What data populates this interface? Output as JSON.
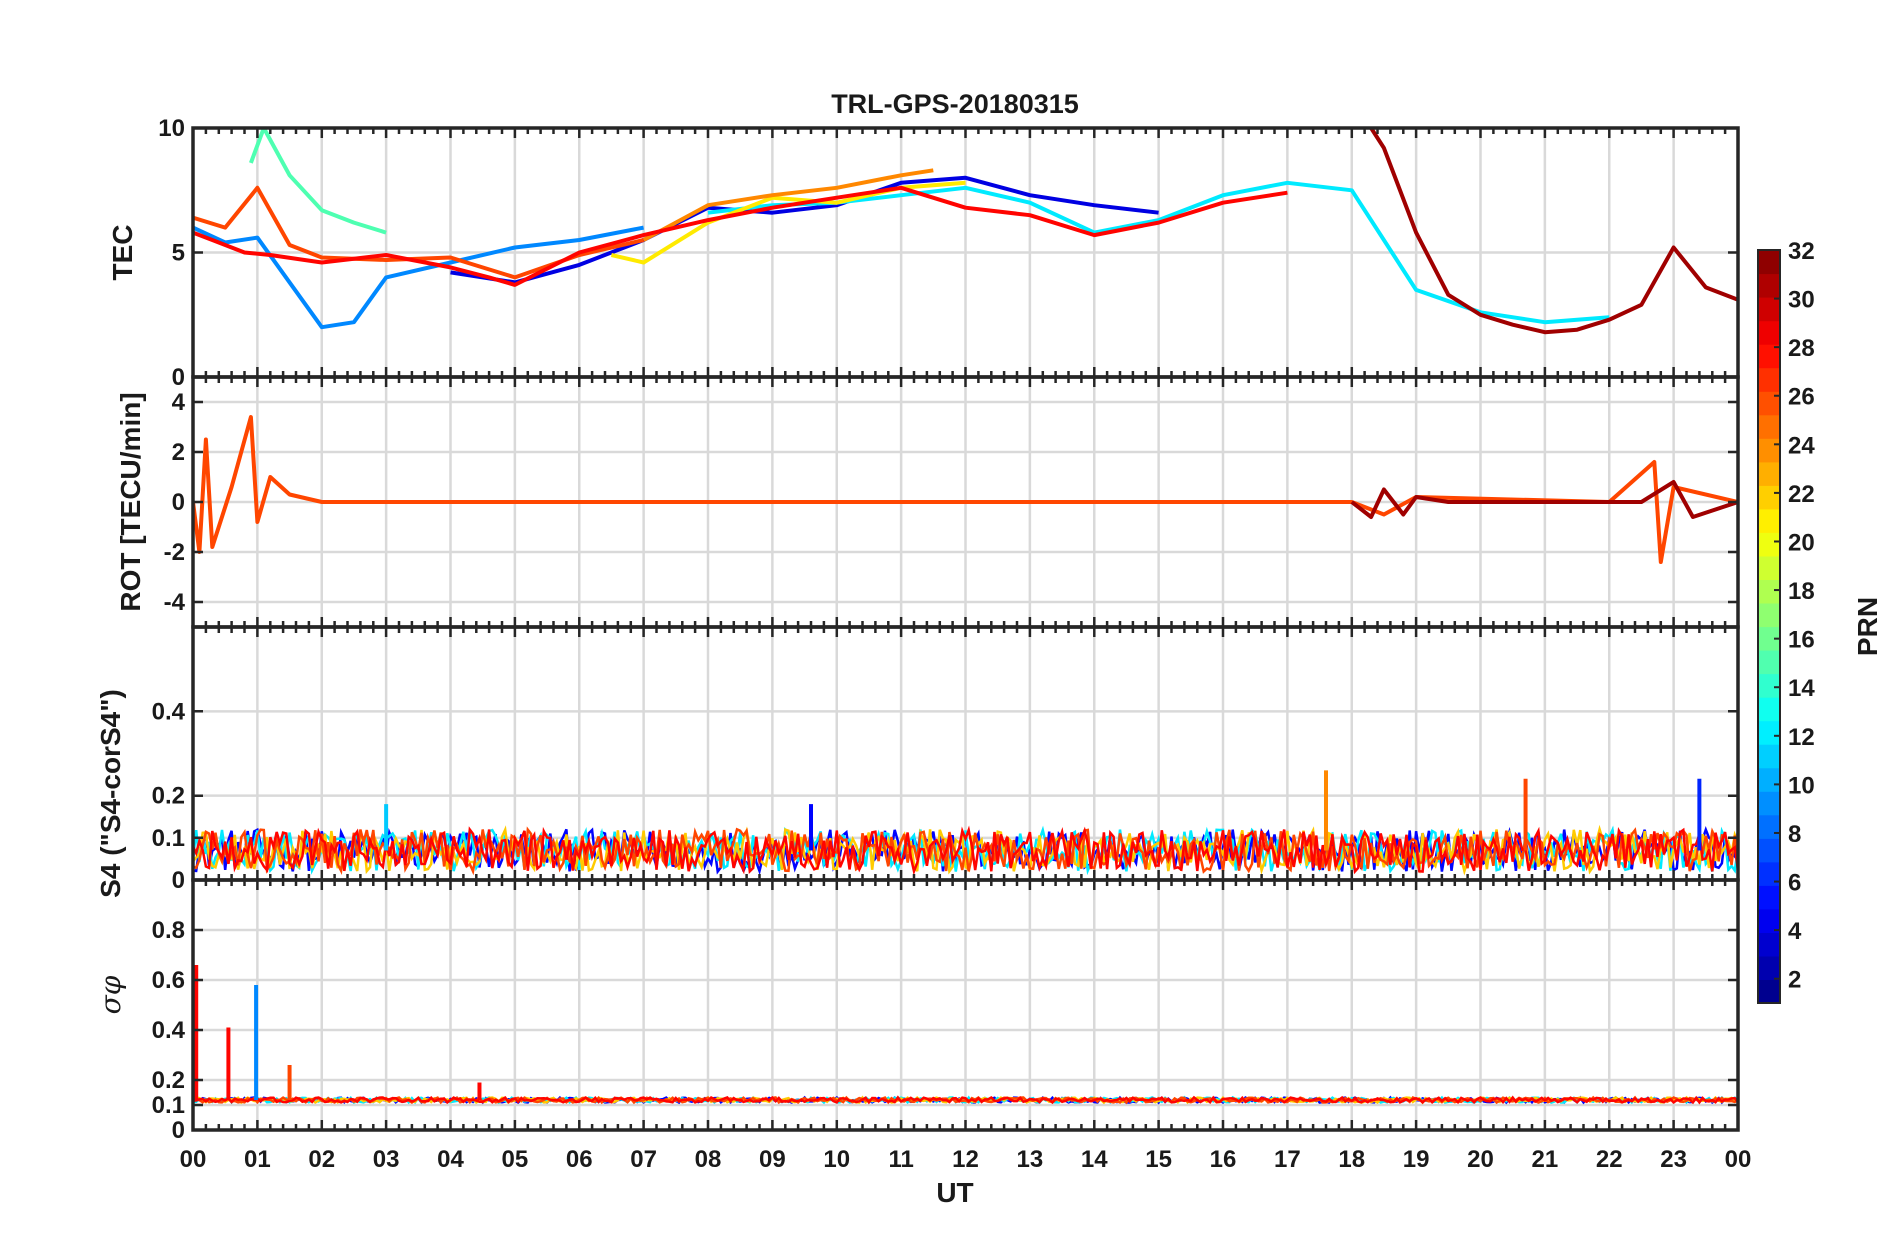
{
  "chart_data": {
    "type": "line",
    "title": "TRL-GPS-20180315",
    "xlabel": "UT",
    "x_tick_labels": [
      "00",
      "01",
      "02",
      "03",
      "04",
      "05",
      "06",
      "07",
      "08",
      "09",
      "10",
      "11",
      "12",
      "13",
      "14",
      "15",
      "16",
      "17",
      "18",
      "19",
      "20",
      "21",
      "22",
      "23",
      "00"
    ],
    "xlim": [
      0,
      24
    ],
    "grid": true,
    "panels": [
      {
        "name": "tec",
        "ylabel": "TEC",
        "ylim": [
          0,
          10
        ],
        "y_ticks": [
          0,
          5,
          10
        ],
        "y_tick_labels": [
          "0",
          "5",
          "10"
        ],
        "series": [
          {
            "prn": 4,
            "x": [
              4.0,
              5.0,
              6.0,
              7.0,
              8.0,
              9.0,
              10.0,
              11.0,
              12.0,
              13.0,
              14.0,
              15.0
            ],
            "y": [
              4.2,
              3.8,
              4.5,
              5.5,
              6.8,
              6.6,
              6.9,
              7.8,
              8.0,
              7.3,
              6.9,
              6.6
            ]
          },
          {
            "prn": 9,
            "x": [
              0.0,
              0.5,
              1.0,
              1.5,
              2.0,
              2.5,
              3.0,
              4.0,
              5.0,
              6.0,
              7.0
            ],
            "y": [
              6.0,
              5.4,
              5.6,
              3.8,
              2.0,
              2.2,
              4.0,
              4.6,
              5.2,
              5.5,
              6.0
            ]
          },
          {
            "prn": 12,
            "x": [
              8.0,
              9.0,
              10.0,
              11.0,
              12.0,
              13.0,
              14.0,
              15.0,
              16.0,
              17.0,
              18.0,
              19.0,
              20.0,
              21.0,
              22.0
            ],
            "y": [
              6.6,
              6.9,
              7.0,
              7.3,
              7.6,
              7.0,
              5.8,
              6.3,
              7.3,
              7.8,
              7.5,
              3.5,
              2.6,
              2.2,
              2.4
            ]
          },
          {
            "prn": 15,
            "x": [
              0.9,
              1.1,
              1.5,
              2.0,
              2.5,
              3.0
            ],
            "y": [
              8.6,
              10.0,
              8.1,
              6.7,
              6.2,
              5.8
            ]
          },
          {
            "prn": 21,
            "x": [
              6.5,
              7.0,
              8.0,
              9.0,
              10.0,
              11.0,
              12.0
            ],
            "y": [
              4.9,
              4.6,
              6.2,
              7.2,
              7.0,
              7.6,
              7.8
            ]
          },
          {
            "prn": 24,
            "x": [
              7.0,
              8.0,
              9.0,
              10.0,
              11.0,
              11.5
            ],
            "y": [
              5.5,
              6.9,
              7.3,
              7.6,
              8.1,
              8.3
            ]
          },
          {
            "prn": 26,
            "x": [
              0.0,
              0.5,
              1.0,
              1.5,
              2.0,
              3.0,
              4.0,
              5.0,
              6.0,
              7.0
            ],
            "y": [
              6.4,
              6.0,
              7.6,
              5.3,
              4.8,
              4.7,
              4.8,
              4.0,
              4.9,
              5.5
            ]
          },
          {
            "prn": 28,
            "x": [
              0.0,
              0.3,
              0.8,
              1.2,
              2.0,
              3.0,
              4.0,
              4.6,
              5.0,
              6.0,
              7.0,
              8.0,
              9.0,
              10.0,
              11.0,
              12.0,
              13.0,
              14.0,
              15.0,
              16.0,
              17.0
            ],
            "y": [
              5.8,
              5.5,
              5.0,
              4.9,
              4.6,
              4.9,
              4.4,
              4.0,
              3.7,
              5.0,
              5.7,
              6.3,
              6.8,
              7.2,
              7.6,
              6.8,
              6.5,
              5.7,
              6.2,
              7.0,
              7.4
            ]
          },
          {
            "prn": 31,
            "x": [
              18.3,
              18.5,
              19.0,
              19.5,
              20.0,
              20.5,
              21.0,
              21.5,
              22.0,
              22.5,
              23.0,
              23.5,
              24.0
            ],
            "y": [
              10.0,
              9.2,
              5.8,
              3.3,
              2.5,
              2.1,
              1.8,
              1.9,
              2.3,
              2.9,
              5.2,
              3.6,
              3.1
            ]
          }
        ]
      },
      {
        "name": "rot",
        "ylabel": "ROT [TECU/min]",
        "ylim": [
          -5,
          5
        ],
        "y_ticks": [
          -4,
          -2,
          0,
          2,
          4
        ],
        "y_tick_labels": [
          "-4",
          "-2",
          "0",
          "2",
          "4"
        ],
        "series": [
          {
            "prn": 26,
            "x": [
              0.0,
              0.1,
              0.2,
              0.3,
              0.6,
              0.9,
              1.0,
              1.2,
              1.5,
              2.0,
              5.0,
              10.0,
              15.0,
              18.0,
              18.5,
              19.0,
              22.0,
              22.7,
              22.8,
              23.0,
              24.0
            ],
            "y": [
              0.0,
              -2.0,
              2.5,
              -1.8,
              0.6,
              3.4,
              -0.8,
              1.0,
              0.3,
              0.0,
              0.0,
              0.0,
              0.0,
              0.0,
              -0.5,
              0.2,
              0.0,
              1.6,
              -2.4,
              0.6,
              0.0
            ]
          },
          {
            "prn": 31,
            "x": [
              18.0,
              18.3,
              18.5,
              18.8,
              19.0,
              19.5,
              22.5,
              23.0,
              23.3,
              24.0
            ],
            "y": [
              0.0,
              -0.6,
              0.5,
              -0.5,
              0.2,
              0.0,
              0.0,
              0.8,
              -0.6,
              0.0
            ]
          }
        ]
      },
      {
        "name": "s4",
        "ylabel": "S4 (\"S4-corS4\")",
        "ylim": [
          0,
          0.6
        ],
        "y_ticks": [
          0,
          0.1,
          0.2,
          0.4
        ],
        "y_tick_labels": [
          "0",
          "0.1",
          "0.2",
          "0.4"
        ],
        "notable_peaks": [
          {
            "prn": 24,
            "x": 17.6,
            "y": 0.26
          },
          {
            "prn": 26,
            "x": 20.7,
            "y": 0.24
          },
          {
            "prn": 6,
            "x": 23.4,
            "y": 0.24
          },
          {
            "prn": 5,
            "x": 9.6,
            "y": 0.18
          },
          {
            "prn": 11,
            "x": 3.0,
            "y": 0.18
          }
        ],
        "typical_range": [
          0.02,
          0.12
        ]
      },
      {
        "name": "sigma_phi",
        "ylabel": "σφ",
        "ylim": [
          0,
          1
        ],
        "y_ticks": [
          0,
          0.1,
          0.2,
          0.4,
          0.6,
          0.8
        ],
        "y_tick_labels": [
          "0",
          "0.1",
          "0.2",
          "0.4",
          "0.6",
          "0.8"
        ],
        "notable_peaks": [
          {
            "prn": 28,
            "x": 0.05,
            "y": 0.66
          },
          {
            "prn": 28,
            "x": 0.55,
            "y": 0.41
          },
          {
            "prn": 9,
            "x": 0.98,
            "y": 0.58
          },
          {
            "prn": 26,
            "x": 1.5,
            "y": 0.26
          },
          {
            "prn": 28,
            "x": 4.45,
            "y": 0.19
          }
        ],
        "typical_level": 0.12
      }
    ],
    "colorbar": {
      "label": "PRN",
      "range": [
        1,
        32
      ],
      "ticks": [
        2,
        4,
        6,
        8,
        10,
        12,
        14,
        16,
        18,
        20,
        22,
        24,
        26,
        28,
        30,
        32
      ],
      "colormap": "jet"
    }
  }
}
